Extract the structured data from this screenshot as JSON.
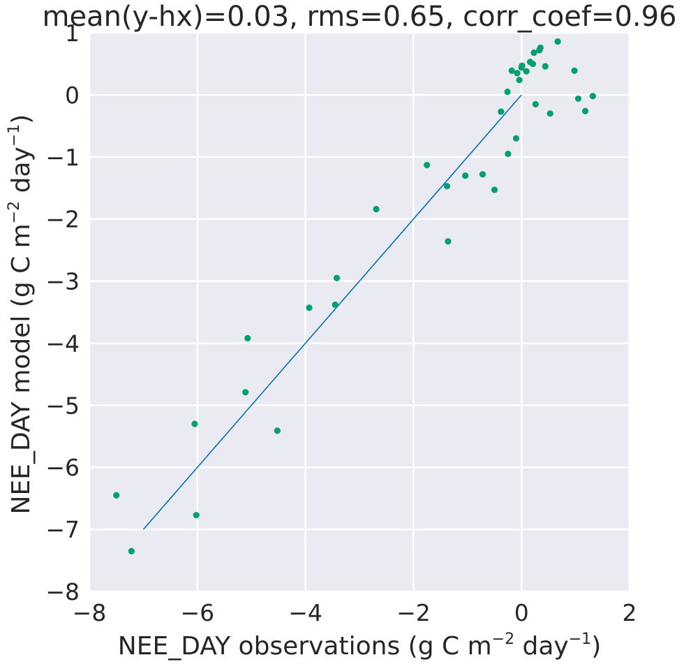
{
  "chart_data": {
    "type": "scatter",
    "title": "mean(y-hx)=0.03, rms=0.65, corr_coef=0.96",
    "xlabel": {
      "base": "NEE_DAY observations (g C m",
      "exp1": "−2",
      "mid": " day",
      "exp2": "−1",
      "end": ")"
    },
    "ylabel": {
      "base": "NEE_DAY model (g C m",
      "exp1": "−2",
      "mid": " day",
      "exp2": "−1",
      "end": ")"
    },
    "xlim": [
      -8,
      2
    ],
    "ylim": [
      -8,
      1
    ],
    "xticks": [
      -8,
      -6,
      -4,
      -2,
      0,
      2
    ],
    "xtick_labels": [
      "−8",
      "−6",
      "−4",
      "−2",
      "0",
      "2"
    ],
    "yticks": [
      -8,
      -7,
      -6,
      -5,
      -4,
      -3,
      -2,
      -1,
      0,
      1
    ],
    "ytick_labels": [
      "−8",
      "−7",
      "−6",
      "−5",
      "−4",
      "−3",
      "−2",
      "−1",
      "0",
      "1"
    ],
    "grid": true,
    "background": "#eaeaf2",
    "point_color": "#009e73",
    "line_color": "#0072b2",
    "line": {
      "x": [
        -7,
        0
      ],
      "y": [
        -7,
        0
      ]
    },
    "x": [
      -7.5,
      -7.22,
      -6.02,
      -6.05,
      -5.07,
      -5.11,
      -4.52,
      -3.93,
      -3.42,
      -3.45,
      -2.69,
      -1.75,
      -1.38,
      -1.36,
      -1.04,
      -0.72,
      -0.5,
      -0.38,
      -0.26,
      -0.25,
      -0.18,
      -0.1,
      -0.08,
      -0.04,
      0.0,
      0.01,
      0.09,
      0.16,
      0.21,
      0.23,
      0.26,
      0.33,
      0.35,
      0.44,
      0.53,
      0.67,
      0.98,
      1.05,
      1.18,
      1.32
    ],
    "y": [
      -6.45,
      -7.35,
      -6.77,
      -5.3,
      -3.92,
      -4.79,
      -5.41,
      -3.43,
      -2.95,
      -3.38,
      -1.84,
      -1.13,
      -1.47,
      -2.36,
      -1.3,
      -1.28,
      -1.53,
      -0.27,
      0.05,
      -0.95,
      0.39,
      -0.7,
      0.35,
      0.24,
      0.44,
      0.47,
      0.38,
      0.53,
      0.5,
      0.68,
      -0.15,
      0.72,
      0.76,
      0.46,
      -0.3,
      0.86,
      0.39,
      -0.06,
      -0.26,
      -0.02
    ]
  }
}
